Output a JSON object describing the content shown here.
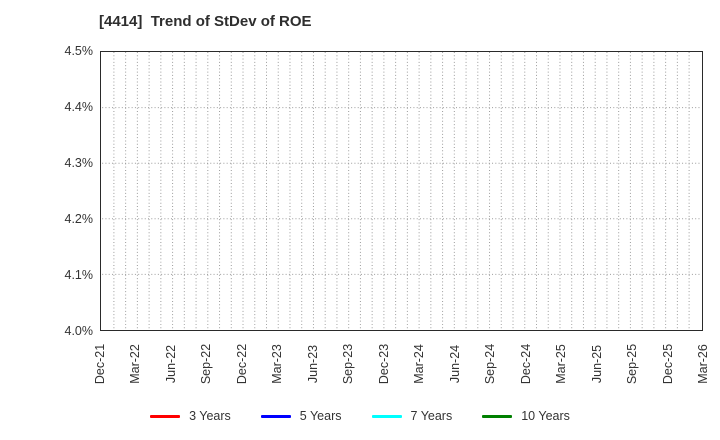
{
  "page": {
    "background": "#ffffff"
  },
  "chart_data": {
    "type": "line",
    "title": "[4414]  Trend of StDev of ROE",
    "xlabel": "",
    "ylabel": "",
    "ylim": [
      4.0,
      4.5
    ],
    "y_tick_step": 0.1,
    "y_ticklabels": [
      "4.0%",
      "4.1%",
      "4.2%",
      "4.3%",
      "4.4%",
      "4.5%"
    ],
    "x_ticklabels": [
      "Dec-21",
      "Mar-22",
      "Jun-22",
      "Sep-22",
      "Dec-22",
      "Mar-23",
      "Jun-23",
      "Sep-23",
      "Dec-23",
      "Mar-24",
      "Jun-24",
      "Sep-24",
      "Dec-24",
      "Mar-25",
      "Jun-25",
      "Sep-25",
      "Dec-25",
      "Mar-26"
    ],
    "x_tick_interval_months": 3,
    "x_total_months": 51,
    "grid": {
      "visible": true,
      "style": "dotted",
      "color": "#9b9b9b",
      "vertical_every_months": 1,
      "horizontal_every_percent": 0.1
    },
    "axis_border_color": "#2a2a2a",
    "plot_empty": true,
    "series": [
      {
        "name": "3 Years",
        "color": "#ff0000",
        "values": []
      },
      {
        "name": "5 Years",
        "color": "#0000ff",
        "values": []
      },
      {
        "name": "7 Years",
        "color": "#00ffff",
        "values": []
      },
      {
        "name": "10 Years",
        "color": "#008000",
        "values": []
      }
    ],
    "legend_position": "bottom"
  }
}
